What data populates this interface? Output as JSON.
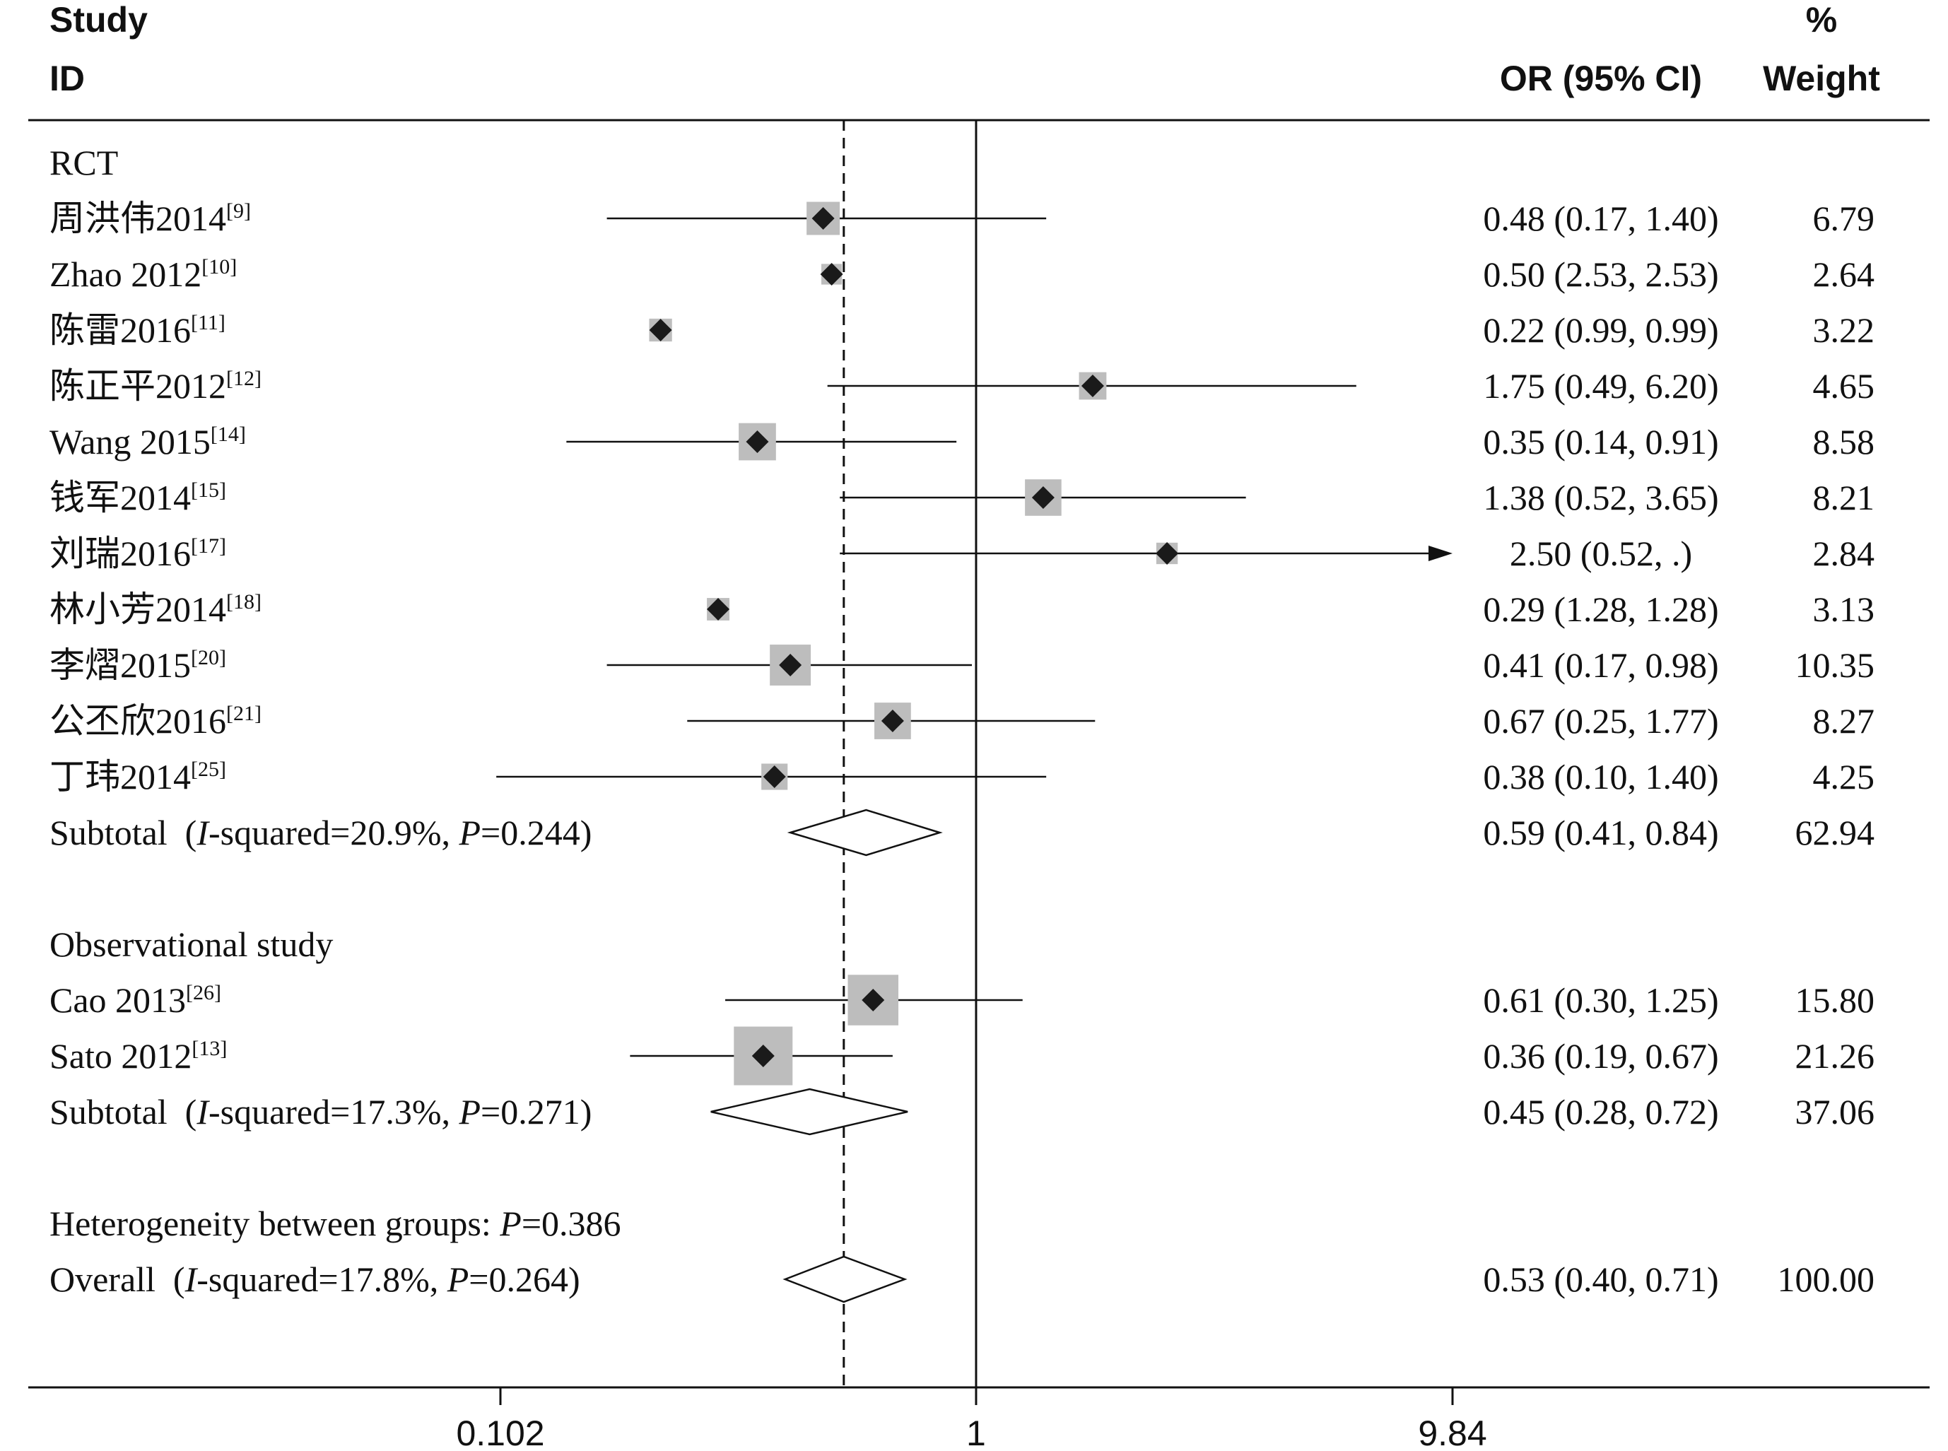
{
  "chart_data": {
    "type": "forest",
    "header": {
      "study_line1": "Study",
      "study_line2": "ID",
      "or": "OR (95% CI)",
      "weight_line1": "%",
      "weight_line2": "Weight"
    },
    "x_scale": "log",
    "xlim": [
      0.102,
      9.84
    ],
    "x_ticks": [
      "0.102",
      "1",
      "9.84"
    ],
    "null_line": 1,
    "overall_line": 0.53,
    "rows": [
      {
        "kind": "group",
        "label": "RCT"
      },
      {
        "kind": "study",
        "label": "周洪伟2014",
        "ref": "[9]",
        "or": 0.48,
        "lo": 0.17,
        "hi": 1.4,
        "ci_text": "0.48 (0.17, 1.40)",
        "weight": "6.79"
      },
      {
        "kind": "study",
        "label": "Zhao 2012",
        "ref": "[10]",
        "or": 0.5,
        "lo": null,
        "hi": null,
        "ci_text": "0.50 (2.53, 2.53)",
        "weight": "2.64"
      },
      {
        "kind": "study",
        "label": "陈雷2016",
        "ref": "[11]",
        "or": 0.22,
        "lo": null,
        "hi": null,
        "ci_text": "0.22 (0.99, 0.99)",
        "weight": "3.22"
      },
      {
        "kind": "study",
        "label": "陈正平2012",
        "ref": "[12]",
        "or": 1.75,
        "lo": 0.49,
        "hi": 6.2,
        "ci_text": "1.75 (0.49, 6.20)",
        "weight": "4.65"
      },
      {
        "kind": "study",
        "label": "Wang 2015",
        "ref": "[14]",
        "or": 0.35,
        "lo": 0.14,
        "hi": 0.91,
        "ci_text": "0.35 (0.14, 0.91)",
        "weight": "8.58"
      },
      {
        "kind": "study",
        "label": "钱军2014",
        "ref": "[15]",
        "or": 1.38,
        "lo": 0.52,
        "hi": 3.65,
        "ci_text": "1.38 (0.52, 3.65)",
        "weight": "8.21"
      },
      {
        "kind": "study",
        "label": "刘瑞2016",
        "ref": "[17]",
        "or": 2.5,
        "lo": 0.52,
        "hi": null,
        "arrow": true,
        "ci_text": "2.50 (0.52, .)",
        "weight": "2.84"
      },
      {
        "kind": "study",
        "label": "林小芳2014",
        "ref": "[18]",
        "or": 0.29,
        "lo": null,
        "hi": null,
        "ci_text": "0.29 (1.28, 1.28)",
        "weight": "3.13"
      },
      {
        "kind": "study",
        "label": "李熠2015",
        "ref": "[20]",
        "or": 0.41,
        "lo": 0.17,
        "hi": 0.98,
        "ci_text": "0.41 (0.17, 0.98)",
        "weight": "10.35"
      },
      {
        "kind": "study",
        "label": "公丕欣2016",
        "ref": "[21]",
        "or": 0.67,
        "lo": 0.25,
        "hi": 1.77,
        "ci_text": "0.67 (0.25, 1.77)",
        "weight": "8.27"
      },
      {
        "kind": "study",
        "label": "丁玮2014",
        "ref": "[25]",
        "or": 0.38,
        "lo": 0.1,
        "hi": 1.4,
        "ci_text": "0.38 (0.10, 1.40)",
        "weight": "4.25"
      },
      {
        "kind": "subtotal",
        "pre": "Subtotal (",
        "i2": "-squared=20.9%, ",
        "p": "=0.244)",
        "or": 0.59,
        "lo": 0.41,
        "hi": 0.84,
        "ci_text": "0.59 (0.41, 0.84)",
        "weight": "62.94"
      },
      {
        "kind": "blank"
      },
      {
        "kind": "group",
        "label": "Observational study"
      },
      {
        "kind": "study",
        "label": "Cao 2013",
        "ref": "[26]",
        "or": 0.61,
        "lo": 0.3,
        "hi": 1.25,
        "ci_text": "0.61 (0.30, 1.25)",
        "weight": "15.80"
      },
      {
        "kind": "study",
        "label": "Sato 2012",
        "ref": "[13]",
        "or": 0.36,
        "lo": 0.19,
        "hi": 0.67,
        "ci_text": "0.36 (0.19, 0.67)",
        "weight": "21.26"
      },
      {
        "kind": "subtotal",
        "pre": "Subtotal (",
        "i2": "-squared=17.3%, ",
        "p": "=0.271)",
        "or": 0.45,
        "lo": 0.28,
        "hi": 0.72,
        "ci_text": "0.45 (0.28, 0.72)",
        "weight": "37.06"
      },
      {
        "kind": "blank"
      },
      {
        "kind": "note",
        "pre": "Heterogeneity between groups: ",
        "p": "=0.386"
      },
      {
        "kind": "subtotal",
        "pre": "Overall (",
        "i2": "-squared=17.8%, ",
        "p": "=0.264)",
        "or": 0.53,
        "lo": 0.4,
        "hi": 0.71,
        "ci_text": "0.53 (0.40, 0.71)",
        "weight": "100.00"
      }
    ]
  }
}
